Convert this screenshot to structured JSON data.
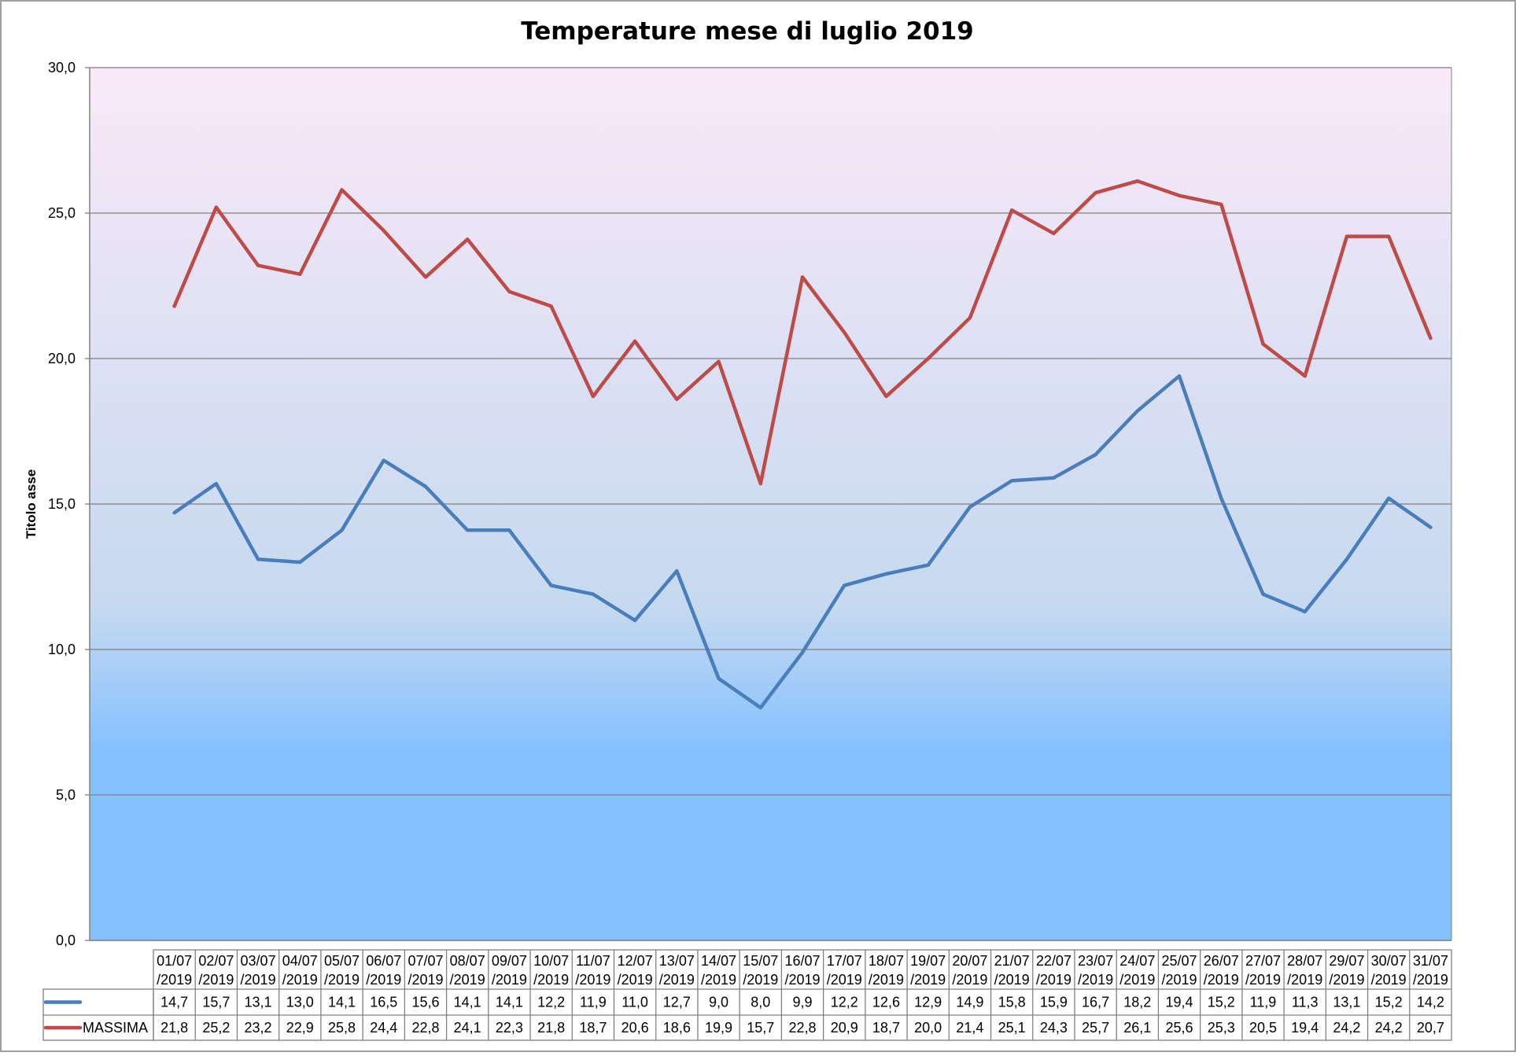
{
  "chart_data": {
    "type": "line",
    "title": "Temperature mese di luglio 2019",
    "ylabel": "Titolo asse",
    "xlabel": "",
    "ylim": [
      0,
      30
    ],
    "y_ticks": [
      "0,0",
      "5,0",
      "10,0",
      "15,0",
      "20,0",
      "25,0",
      "30,0"
    ],
    "grid": true,
    "legend": "data-table-left",
    "categories": [
      [
        "01/07",
        "/2019"
      ],
      [
        "02/07",
        "/2019"
      ],
      [
        "03/07",
        "/2019"
      ],
      [
        "04/07",
        "/2019"
      ],
      [
        "05/07",
        "/2019"
      ],
      [
        "06/07",
        "/2019"
      ],
      [
        "07/07",
        "/2019"
      ],
      [
        "08/07",
        "/2019"
      ],
      [
        "09/07",
        "/2019"
      ],
      [
        "10/07",
        "/2019"
      ],
      [
        "11/07",
        "/2019"
      ],
      [
        "12/07",
        "/2019"
      ],
      [
        "13/07",
        "/2019"
      ],
      [
        "14/07",
        "/2019"
      ],
      [
        "15/07",
        "/2019"
      ],
      [
        "16/07",
        "/2019"
      ],
      [
        "17/07",
        "/2019"
      ],
      [
        "18/07",
        "/2019"
      ],
      [
        "19/07",
        "/2019"
      ],
      [
        "20/07",
        "/2019"
      ],
      [
        "21/07",
        "/2019"
      ],
      [
        "22/07",
        "/2019"
      ],
      [
        "23/07",
        "/2019"
      ],
      [
        "24/07",
        "/2019"
      ],
      [
        "25/07",
        "/2019"
      ],
      [
        "26/07",
        "/2019"
      ],
      [
        "27/07",
        "/2019"
      ],
      [
        "28/07",
        "/2019"
      ],
      [
        "29/07",
        "/2019"
      ],
      [
        "30/07",
        "/2019"
      ],
      [
        "31/07",
        "/2019"
      ]
    ],
    "series": [
      {
        "name": "",
        "color": "#4a7ebb",
        "values": [
          14.7,
          15.7,
          13.1,
          13.0,
          14.1,
          16.5,
          15.6,
          14.1,
          14.1,
          12.2,
          11.9,
          11.0,
          12.7,
          9.0,
          8.0,
          9.9,
          12.2,
          12.6,
          12.9,
          14.9,
          15.8,
          15.9,
          16.7,
          18.2,
          19.4,
          15.2,
          11.9,
          11.3,
          13.1,
          15.2,
          14.2
        ],
        "labels": [
          "14,7",
          "15,7",
          "13,1",
          "13,0",
          "14,1",
          "16,5",
          "15,6",
          "14,1",
          "14,1",
          "12,2",
          "11,9",
          "11,0",
          "12,7",
          "9,0",
          "8,0",
          "9,9",
          "12,2",
          "12,6",
          "12,9",
          "14,9",
          "15,8",
          "15,9",
          "16,7",
          "18,2",
          "19,4",
          "15,2",
          "11,9",
          "11,3",
          "13,1",
          "15,2",
          "14,2"
        ]
      },
      {
        "name": "MASSIMA",
        "color": "#be4b48",
        "values": [
          21.8,
          25.2,
          23.2,
          22.9,
          25.8,
          24.4,
          22.8,
          24.1,
          22.3,
          21.8,
          18.7,
          20.6,
          18.6,
          19.9,
          15.7,
          22.8,
          20.9,
          18.7,
          20.0,
          21.4,
          25.1,
          24.3,
          25.7,
          26.1,
          25.6,
          25.3,
          20.5,
          19.4,
          24.2,
          24.2,
          20.7
        ],
        "labels": [
          "21,8",
          "25,2",
          "23,2",
          "22,9",
          "25,8",
          "24,4",
          "22,8",
          "24,1",
          "22,3",
          "21,8",
          "18,7",
          "20,6",
          "18,6",
          "19,9",
          "15,7",
          "22,8",
          "20,9",
          "18,7",
          "20,0",
          "21,4",
          "25,1",
          "24,3",
          "25,7",
          "26,1",
          "25,6",
          "25,3",
          "20,5",
          "19,4",
          "24,2",
          "24,2",
          "20,7"
        ]
      }
    ],
    "colors": {
      "plot_top": "#f9e9f8",
      "plot_mid": "#c5d9f0",
      "plot_bottom": "#85c1ff",
      "gridline": "#7f7f7f",
      "border": "#808080"
    }
  }
}
